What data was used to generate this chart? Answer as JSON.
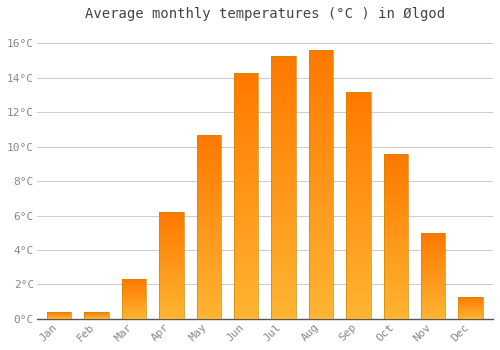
{
  "title": "Average monthly temperatures (°C ) in Ølgod",
  "months": [
    "Jan",
    "Feb",
    "Mar",
    "Apr",
    "May",
    "Jun",
    "Jul",
    "Aug",
    "Sep",
    "Oct",
    "Nov",
    "Dec"
  ],
  "temperatures": [
    0.4,
    0.4,
    2.3,
    6.2,
    10.7,
    14.3,
    15.3,
    15.6,
    13.2,
    9.6,
    5.0,
    1.3
  ],
  "bar_color_main": "#FFA500",
  "bar_color_top": "#FFB833",
  "bar_color_bottom": "#FFCC44",
  "bar_edge_color": "#CC8800",
  "background_color": "#FFFFFF",
  "plot_bg_color": "#FFFFFF",
  "grid_color": "#CCCCCC",
  "yticks": [
    0,
    2,
    4,
    6,
    8,
    10,
    12,
    14,
    16
  ],
  "ylim": [
    0,
    17.0
  ],
  "title_fontsize": 10,
  "tick_fontsize": 8,
  "font_family": "monospace",
  "tick_color": "#888888",
  "figsize": [
    5.0,
    3.5
  ],
  "dpi": 100
}
